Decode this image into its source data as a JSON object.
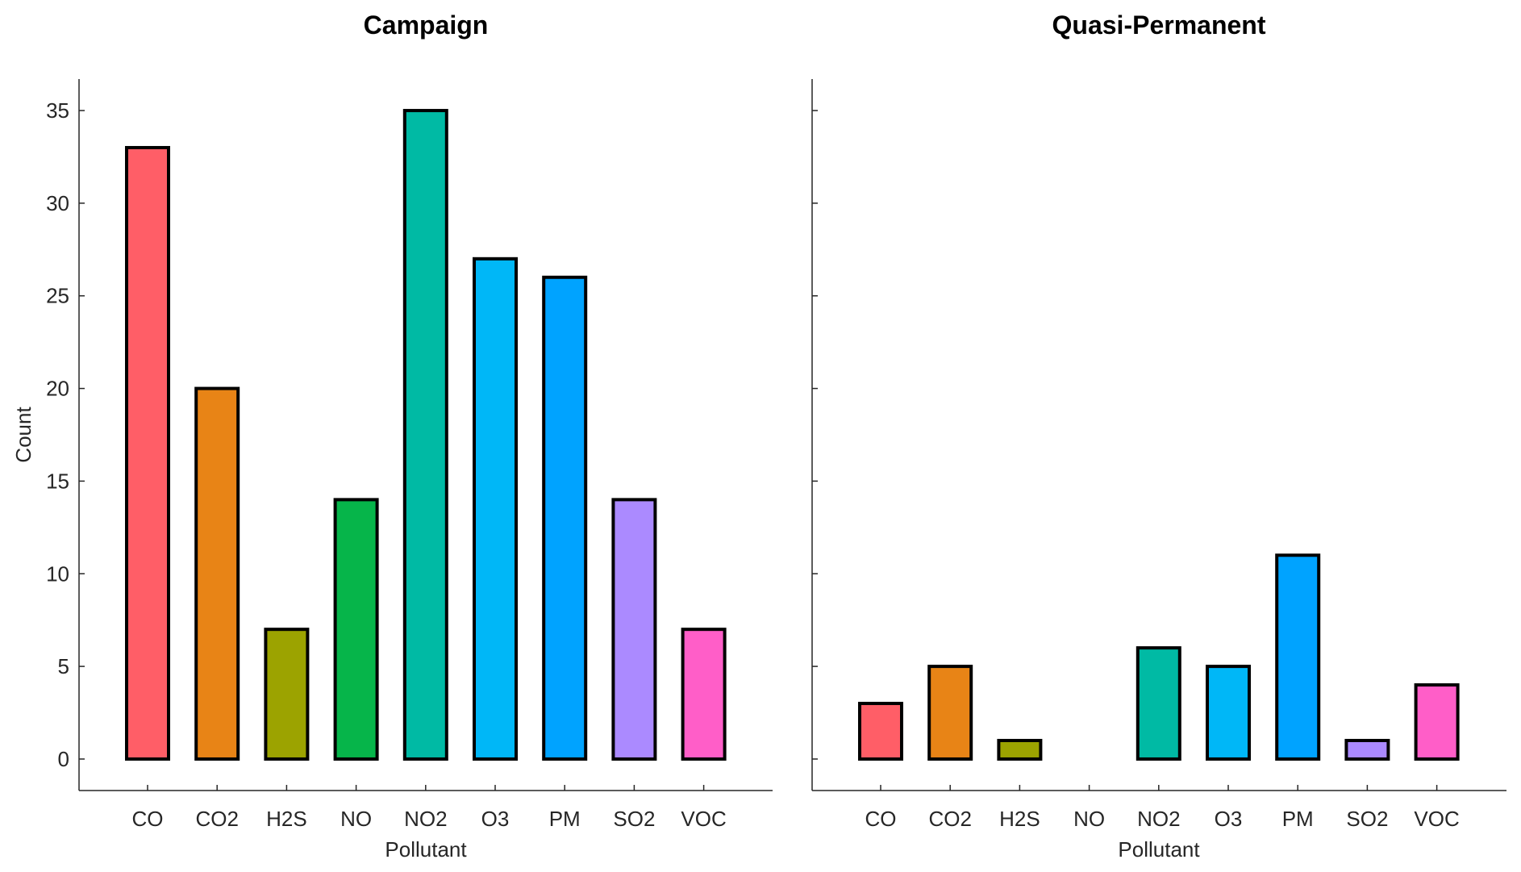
{
  "chart_data": [
    {
      "type": "bar",
      "title": "Campaign",
      "xlabel": "Pollutant",
      "ylabel": "Count",
      "categories": [
        "CO",
        "CO2",
        "H2S",
        "NO",
        "NO2",
        "O3",
        "PM",
        "SO2",
        "VOC"
      ],
      "values": [
        33,
        20,
        7,
        14,
        35,
        27,
        26,
        14,
        7
      ],
      "colors": [
        "#FF5E67",
        "#E88416",
        "#9CA300",
        "#06B54A",
        "#00BAA4",
        "#00B7F7",
        "#00A3FF",
        "#AB8AFF",
        "#FF5EC8"
      ],
      "ylim": [
        -1.7,
        36.7
      ],
      "yticks": [
        0,
        5,
        10,
        15,
        20,
        25,
        30,
        35
      ],
      "ytick_labels": [
        "0",
        "5",
        "10",
        "15",
        "20",
        "25",
        "30",
        "35"
      ],
      "grid": false,
      "show_y_tick_labels": true
    },
    {
      "type": "bar",
      "title": "Quasi-Permanent",
      "xlabel": "Pollutant",
      "ylabel": "",
      "categories": [
        "CO",
        "CO2",
        "H2S",
        "NO",
        "NO2",
        "O3",
        "PM",
        "SO2",
        "VOC"
      ],
      "values": [
        3,
        5,
        1,
        0,
        6,
        5,
        11,
        1,
        4
      ],
      "colors": [
        "#FF5E67",
        "#E88416",
        "#9CA300",
        "#06B54A",
        "#00BAA4",
        "#00B7F7",
        "#00A3FF",
        "#AB8AFF",
        "#FF5EC8"
      ],
      "ylim": [
        -1.7,
        36.7
      ],
      "yticks": [
        0,
        5,
        10,
        15,
        20,
        25,
        30,
        35
      ],
      "ytick_labels": [
        "",
        "",
        "",
        "",
        "",
        "",
        "",
        ""
      ],
      "grid": false,
      "show_y_tick_labels": false
    }
  ]
}
